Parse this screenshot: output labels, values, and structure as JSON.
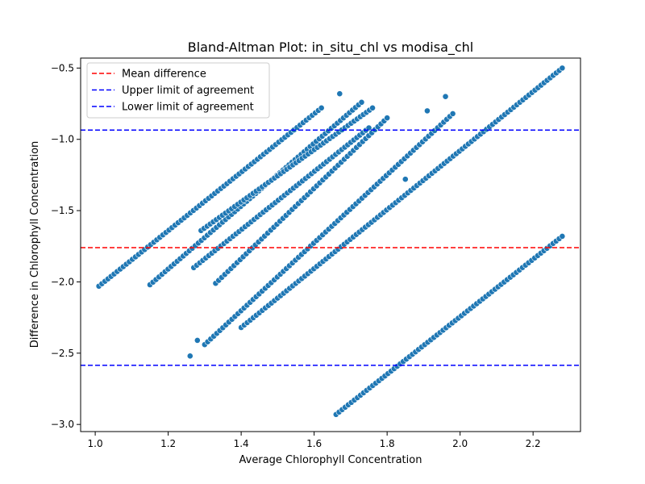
{
  "chart_data": {
    "type": "scatter",
    "title": "Bland-Altman Plot: in_situ_chl vs modisa_chl",
    "xlabel": "Average Chlorophyll Concentration",
    "ylabel": "Difference in Chlorophyll Concentration",
    "xlim": [
      0.96,
      2.33
    ],
    "ylim": [
      -3.05,
      -0.43
    ],
    "xticks": [
      1.0,
      1.2,
      1.4,
      1.6,
      1.8,
      2.0,
      2.2
    ],
    "yticks": [
      -3.0,
      -2.5,
      -2.0,
      -1.5,
      -1.0,
      -0.5
    ],
    "grid": false,
    "legend_position": "top-left",
    "point_color": "#1f77b4",
    "reference_lines": [
      {
        "name": "Mean difference",
        "y": -1.76,
        "color": "#ff0000",
        "style": "dashed"
      },
      {
        "name": "Upper limit of agreement",
        "y": -0.935,
        "color": "#0000ff",
        "style": "dashed"
      },
      {
        "name": "Lower limit of agreement",
        "y": -2.585,
        "color": "#0000ff",
        "style": "dashed"
      }
    ],
    "bands": [
      {
        "x_start": 1.01,
        "y_start": -2.03,
        "x_end": 1.62,
        "y_end": -0.78
      },
      {
        "x_start": 1.15,
        "y_start": -2.02,
        "x_end": 1.73,
        "y_end": -0.74
      },
      {
        "x_start": 1.27,
        "y_start": -1.9,
        "x_end": 1.75,
        "y_end": -0.92
      },
      {
        "x_start": 1.29,
        "y_start": -1.64,
        "x_end": 1.76,
        "y_end": -0.78
      },
      {
        "x_start": 1.33,
        "y_start": -2.01,
        "x_end": 1.8,
        "y_end": -0.85
      },
      {
        "x_start": 1.3,
        "y_start": -2.44,
        "x_end": 1.98,
        "y_end": -0.82
      },
      {
        "x_start": 1.4,
        "y_start": -2.32,
        "x_end": 2.28,
        "y_end": -0.5
      },
      {
        "x_start": 1.66,
        "y_start": -2.93,
        "x_end": 2.28,
        "y_end": -1.68
      }
    ],
    "extra_points": [
      {
        "x": 1.26,
        "y": -2.52
      },
      {
        "x": 1.28,
        "y": -2.41
      },
      {
        "x": 1.67,
        "y": -0.68
      },
      {
        "x": 1.96,
        "y": -0.7
      },
      {
        "x": 1.91,
        "y": -0.8
      },
      {
        "x": 1.85,
        "y": -1.28
      }
    ]
  }
}
